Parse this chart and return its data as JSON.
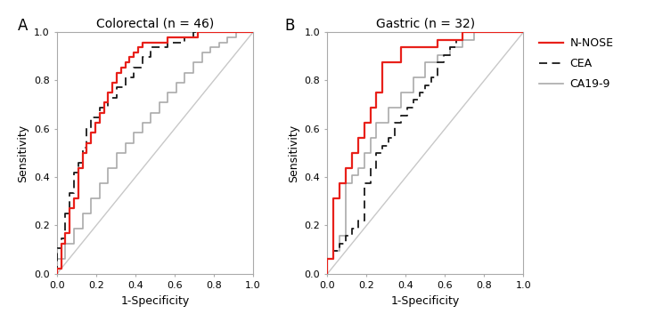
{
  "panel_A_title": "Colorectal (n = 46)",
  "panel_B_title": "Gastric (n = 32)",
  "xlabel": "1-Specificity",
  "ylabel": "Sensitivity",
  "panel_A_label": "A",
  "panel_B_label": "B",
  "legend_labels": [
    "N-NOSE",
    "CEA",
    "CA19-9"
  ],
  "colors": {
    "nnose": "#e8201a",
    "cea": "#1a1a1a",
    "ca199": "#aaaaaa",
    "diagonal": "#c8c8c8"
  },
  "A_nnose_fpr": [
    0.0,
    0.0,
    0.022,
    0.022,
    0.043,
    0.043,
    0.065,
    0.065,
    0.087,
    0.087,
    0.109,
    0.109,
    0.13,
    0.13,
    0.152,
    0.152,
    0.174,
    0.174,
    0.196,
    0.196,
    0.217,
    0.217,
    0.239,
    0.239,
    0.261,
    0.261,
    0.283,
    0.283,
    0.304,
    0.304,
    0.326,
    0.326,
    0.348,
    0.348,
    0.37,
    0.37,
    0.391,
    0.391,
    0.413,
    0.413,
    0.435,
    0.435,
    0.565,
    0.565,
    0.63,
    0.63,
    0.717,
    0.717,
    0.87,
    0.87,
    0.913,
    0.913,
    1.0
  ],
  "A_nnose_tpr": [
    0.0,
    0.021,
    0.021,
    0.125,
    0.125,
    0.167,
    0.167,
    0.271,
    0.271,
    0.313,
    0.313,
    0.438,
    0.438,
    0.5,
    0.5,
    0.542,
    0.542,
    0.583,
    0.583,
    0.625,
    0.625,
    0.667,
    0.667,
    0.708,
    0.708,
    0.75,
    0.75,
    0.792,
    0.792,
    0.833,
    0.833,
    0.854,
    0.854,
    0.875,
    0.875,
    0.896,
    0.896,
    0.917,
    0.917,
    0.938,
    0.938,
    0.958,
    0.958,
    0.979,
    0.979,
    0.979,
    0.979,
    1.0,
    1.0,
    1.0,
    1.0,
    1.0,
    1.0
  ],
  "A_cea_fpr": [
    0.0,
    0.0,
    0.022,
    0.022,
    0.043,
    0.043,
    0.065,
    0.065,
    0.087,
    0.087,
    0.109,
    0.109,
    0.13,
    0.13,
    0.152,
    0.152,
    0.174,
    0.174,
    0.217,
    0.217,
    0.261,
    0.261,
    0.304,
    0.304,
    0.348,
    0.348,
    0.391,
    0.391,
    0.435,
    0.435,
    0.478,
    0.478,
    0.565,
    0.565,
    0.652,
    0.652,
    0.696,
    0.696,
    0.826,
    0.826,
    0.913,
    0.913,
    1.0
  ],
  "A_cea_tpr": [
    0.0,
    0.104,
    0.104,
    0.146,
    0.146,
    0.25,
    0.25,
    0.333,
    0.333,
    0.417,
    0.417,
    0.458,
    0.458,
    0.521,
    0.521,
    0.604,
    0.604,
    0.646,
    0.646,
    0.688,
    0.688,
    0.729,
    0.729,
    0.771,
    0.771,
    0.813,
    0.813,
    0.854,
    0.854,
    0.896,
    0.896,
    0.938,
    0.938,
    0.958,
    0.958,
    0.979,
    0.979,
    1.0,
    1.0,
    1.0,
    1.0,
    1.0,
    1.0
  ],
  "A_ca199_fpr": [
    0.0,
    0.0,
    0.043,
    0.043,
    0.087,
    0.087,
    0.13,
    0.13,
    0.174,
    0.174,
    0.217,
    0.217,
    0.261,
    0.261,
    0.304,
    0.304,
    0.348,
    0.348,
    0.391,
    0.391,
    0.435,
    0.435,
    0.478,
    0.478,
    0.522,
    0.522,
    0.565,
    0.565,
    0.609,
    0.609,
    0.652,
    0.652,
    0.696,
    0.696,
    0.739,
    0.739,
    0.783,
    0.783,
    0.826,
    0.826,
    0.87,
    0.87,
    0.913,
    0.913,
    1.0
  ],
  "A_ca199_tpr": [
    0.0,
    0.063,
    0.063,
    0.125,
    0.125,
    0.188,
    0.188,
    0.25,
    0.25,
    0.313,
    0.313,
    0.375,
    0.375,
    0.438,
    0.438,
    0.5,
    0.5,
    0.542,
    0.542,
    0.583,
    0.583,
    0.625,
    0.625,
    0.667,
    0.667,
    0.708,
    0.708,
    0.75,
    0.75,
    0.792,
    0.792,
    0.833,
    0.833,
    0.875,
    0.875,
    0.917,
    0.917,
    0.938,
    0.938,
    0.958,
    0.958,
    0.979,
    0.979,
    1.0,
    1.0
  ],
  "B_nnose_fpr": [
    0.0,
    0.0,
    0.031,
    0.031,
    0.063,
    0.063,
    0.094,
    0.094,
    0.125,
    0.125,
    0.156,
    0.156,
    0.188,
    0.188,
    0.219,
    0.219,
    0.25,
    0.25,
    0.281,
    0.281,
    0.375,
    0.375,
    0.563,
    0.563,
    0.625,
    0.625,
    0.688,
    0.688,
    0.719,
    0.719,
    0.781,
    0.781,
    0.844,
    0.844,
    1.0
  ],
  "B_nnose_tpr": [
    0.0,
    0.063,
    0.063,
    0.313,
    0.313,
    0.375,
    0.375,
    0.438,
    0.438,
    0.5,
    0.5,
    0.563,
    0.563,
    0.625,
    0.625,
    0.688,
    0.688,
    0.75,
    0.75,
    0.875,
    0.875,
    0.938,
    0.938,
    0.969,
    0.969,
    0.969,
    0.969,
    1.0,
    1.0,
    1.0,
    1.0,
    1.0,
    1.0,
    1.0,
    1.0
  ],
  "B_cea_fpr": [
    0.0,
    0.0,
    0.031,
    0.031,
    0.063,
    0.063,
    0.094,
    0.094,
    0.125,
    0.125,
    0.156,
    0.156,
    0.188,
    0.188,
    0.219,
    0.219,
    0.25,
    0.25,
    0.281,
    0.281,
    0.313,
    0.313,
    0.344,
    0.344,
    0.375,
    0.375,
    0.406,
    0.406,
    0.438,
    0.438,
    0.469,
    0.469,
    0.5,
    0.5,
    0.531,
    0.531,
    0.563,
    0.563,
    0.594,
    0.594,
    0.625,
    0.625,
    0.656,
    0.656,
    0.688,
    0.688,
    0.75,
    0.75,
    0.813,
    0.813,
    0.875,
    0.875,
    1.0
  ],
  "B_cea_tpr": [
    0.0,
    0.063,
    0.063,
    0.094,
    0.094,
    0.125,
    0.125,
    0.156,
    0.156,
    0.188,
    0.188,
    0.219,
    0.219,
    0.375,
    0.375,
    0.438,
    0.438,
    0.5,
    0.5,
    0.531,
    0.531,
    0.563,
    0.563,
    0.625,
    0.625,
    0.656,
    0.656,
    0.688,
    0.688,
    0.719,
    0.719,
    0.75,
    0.75,
    0.781,
    0.781,
    0.813,
    0.813,
    0.875,
    0.875,
    0.906,
    0.906,
    0.938,
    0.938,
    0.969,
    0.969,
    1.0,
    1.0,
    1.0,
    1.0,
    1.0,
    1.0,
    1.0,
    1.0
  ],
  "B_ca199_fpr": [
    0.0,
    0.0,
    0.031,
    0.031,
    0.063,
    0.063,
    0.094,
    0.094,
    0.125,
    0.125,
    0.156,
    0.156,
    0.188,
    0.188,
    0.219,
    0.219,
    0.25,
    0.25,
    0.313,
    0.313,
    0.375,
    0.375,
    0.438,
    0.438,
    0.5,
    0.5,
    0.563,
    0.563,
    0.625,
    0.625,
    0.688,
    0.688,
    0.75,
    0.75,
    0.813,
    0.813,
    0.875,
    0.875,
    1.0
  ],
  "B_ca199_tpr": [
    0.0,
    0.063,
    0.063,
    0.094,
    0.094,
    0.156,
    0.156,
    0.375,
    0.375,
    0.406,
    0.406,
    0.438,
    0.438,
    0.5,
    0.5,
    0.563,
    0.563,
    0.625,
    0.625,
    0.688,
    0.688,
    0.75,
    0.75,
    0.813,
    0.813,
    0.875,
    0.875,
    0.906,
    0.906,
    0.938,
    0.938,
    0.969,
    0.969,
    1.0,
    1.0,
    1.0,
    1.0,
    1.0,
    1.0
  ]
}
